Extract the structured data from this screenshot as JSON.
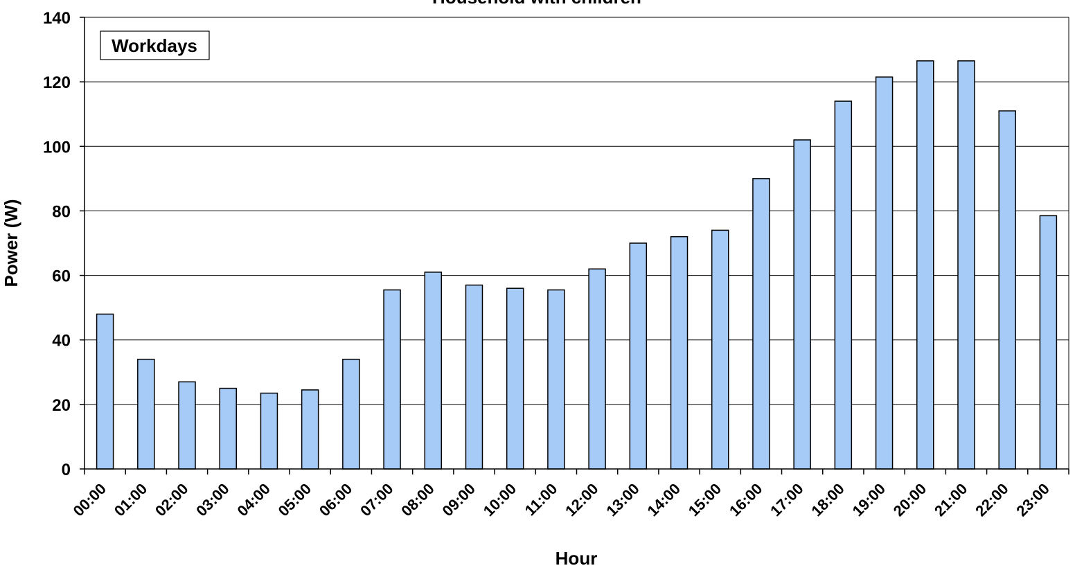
{
  "chart_data": {
    "type": "bar",
    "title": "Household with children",
    "annotation": "Workdays",
    "xlabel": "Hour",
    "ylabel": "Power (W)",
    "ylim": [
      0,
      140
    ],
    "yticks": [
      0,
      20,
      40,
      60,
      80,
      100,
      120,
      140
    ],
    "grid": true,
    "categories": [
      "00:00",
      "01:00",
      "02:00",
      "03:00",
      "04:00",
      "05:00",
      "06:00",
      "07:00",
      "08:00",
      "09:00",
      "10:00",
      "11:00",
      "12:00",
      "13:00",
      "14:00",
      "15:00",
      "16:00",
      "17:00",
      "18:00",
      "19:00",
      "20:00",
      "21:00",
      "22:00",
      "23:00"
    ],
    "values": [
      48,
      34,
      27,
      25,
      23.5,
      24.5,
      34,
      55.5,
      61,
      57,
      56,
      55.5,
      62,
      70,
      72,
      74,
      90,
      102,
      114,
      121.5,
      126.5,
      126.5,
      111,
      78.5
    ],
    "bar_color": "#a6cbf7",
    "bar_edge_color": "#000000"
  }
}
